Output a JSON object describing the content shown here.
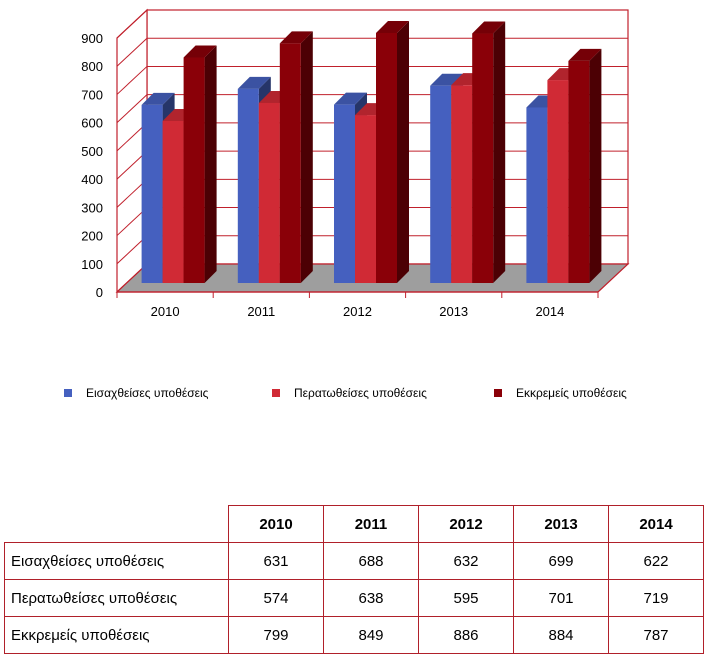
{
  "chart_data": {
    "type": "bar",
    "categories": [
      "2010",
      "2011",
      "2012",
      "2013",
      "2014"
    ],
    "series": [
      {
        "name": "Εισαχθείσες υποθέσεις",
        "values": [
          631,
          688,
          632,
          699,
          622
        ],
        "color": "#4560bf"
      },
      {
        "name": "Περατωθείσες υποθέσεις",
        "values": [
          574,
          638,
          595,
          701,
          719
        ],
        "color": "#d02a35"
      },
      {
        "name": "Εκκρεμείς υποθέσεις",
        "values": [
          799,
          849,
          886,
          884,
          787
        ],
        "color": "#8a0008"
      }
    ],
    "ylim": [
      0,
      900
    ],
    "yticks": [
      "0",
      "100",
      "200",
      "300",
      "400",
      "500",
      "600",
      "700",
      "800",
      "900"
    ],
    "legend_position": "bottom",
    "wall_color": "#c0202c",
    "floor_color": "#9e9e9e"
  },
  "table": {
    "headers": [
      "2010",
      "2011",
      "2012",
      "2013",
      "2014"
    ],
    "rows": [
      {
        "label": "Εισαχθείσες υποθέσεις",
        "values": [
          "631",
          "688",
          "632",
          "699",
          "622"
        ]
      },
      {
        "label": "Περατωθείσες υποθέσεις",
        "values": [
          "574",
          "638",
          "595",
          "701",
          "719"
        ]
      },
      {
        "label": "Εκκρεμείς υποθέσεις",
        "values": [
          "799",
          "849",
          "886",
          "884",
          "787"
        ]
      }
    ]
  }
}
